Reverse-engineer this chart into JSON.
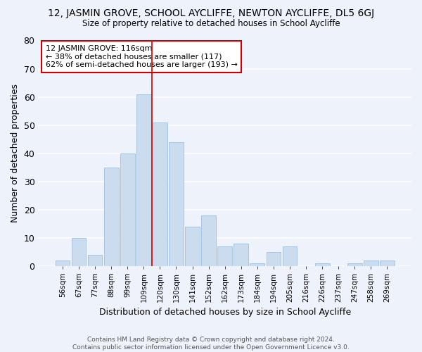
{
  "title": "12, JASMIN GROVE, SCHOOL AYCLIFFE, NEWTON AYCLIFFE, DL5 6GJ",
  "subtitle": "Size of property relative to detached houses in School Aycliffe",
  "xlabel": "Distribution of detached houses by size in School Aycliffe",
  "ylabel": "Number of detached properties",
  "categories": [
    "56sqm",
    "67sqm",
    "77sqm",
    "88sqm",
    "99sqm",
    "109sqm",
    "120sqm",
    "130sqm",
    "141sqm",
    "152sqm",
    "162sqm",
    "173sqm",
    "184sqm",
    "194sqm",
    "205sqm",
    "216sqm",
    "226sqm",
    "237sqm",
    "247sqm",
    "258sqm",
    "269sqm"
  ],
  "values": [
    2,
    10,
    4,
    35,
    40,
    61,
    51,
    44,
    14,
    18,
    7,
    8,
    1,
    5,
    7,
    0,
    1,
    0,
    1,
    2,
    2
  ],
  "bar_color": "#ccdcef",
  "bar_edge_color": "#a8c4e0",
  "background_color": "#eef2fb",
  "grid_color": "#ffffff",
  "vline_color": "#cc0000",
  "vline_x_index": 6,
  "annotation_text_line1": "12 JASMIN GROVE: 116sqm",
  "annotation_text_line2": "← 38% of detached houses are smaller (117)",
  "annotation_text_line3": "62% of semi-detached houses are larger (193) →",
  "annotation_box_color": "#ffffff",
  "annotation_box_edge": "#cc0000",
  "footer": "Contains HM Land Registry data © Crown copyright and database right 2024.\nContains public sector information licensed under the Open Government Licence v3.0.",
  "ylim": [
    0,
    80
  ],
  "yticks": [
    0,
    10,
    20,
    30,
    40,
    50,
    60,
    70,
    80
  ]
}
